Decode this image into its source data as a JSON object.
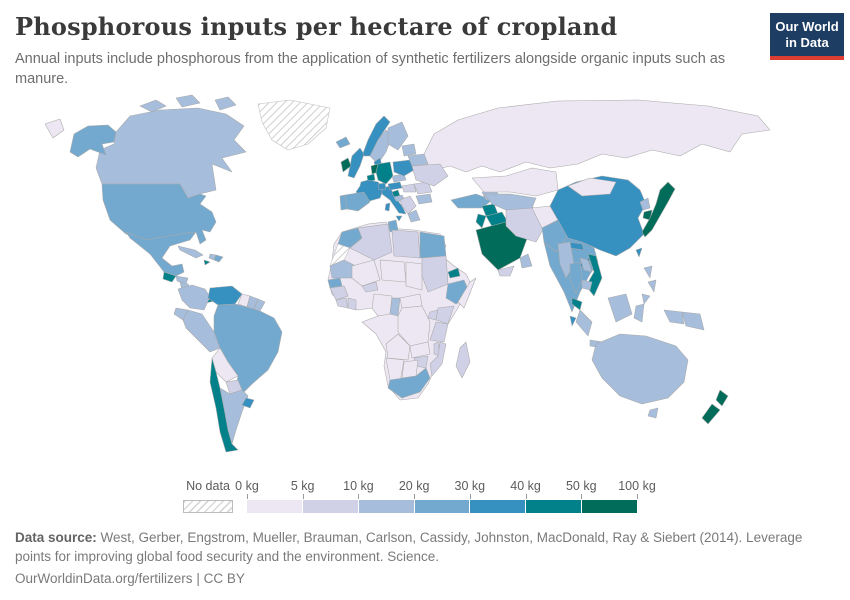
{
  "header": {
    "title": "Phosphorous inputs per hectare of cropland",
    "subtitle": "Annual inputs include phosphorous from the application of synthetic fertilizers alongside organic inputs such as manure.",
    "logo": {
      "line1": "Our World",
      "line2": "in Data",
      "bg_color": "#1d3d63",
      "accent_color": "#dc3e32"
    }
  },
  "legend": {
    "no_data_label": "No data",
    "tick_labels": [
      "0 kg",
      "5 kg",
      "10 kg",
      "20 kg",
      "30 kg",
      "40 kg",
      "50 kg",
      "100 kg"
    ],
    "colors": [
      "#ece7f2",
      "#d0d1e6",
      "#a6bddb",
      "#74a9cf",
      "#3690c0",
      "#02818a",
      "#016c59"
    ]
  },
  "footer": {
    "source_prefix": "Data source:",
    "source_text": " West, Gerber, Engstrom, Mueller, Brauman, Carlson, Cassidy, Johnston, MacDonald, Ray & Siebert (2014). Leverage points for improving global food security and the environment. Science.",
    "link_text": "OurWorldinData.org/fertilizers",
    "separator": " | ",
    "license_text": "CC BY"
  },
  "chart_data": {
    "type": "choropleth_map",
    "title": "Phosphorous inputs per hectare of cropland",
    "unit": "kg",
    "bin_edges_kg": [
      0,
      5,
      10,
      20,
      30,
      40,
      50,
      100
    ],
    "bin_colors": [
      "#ece7f2",
      "#d0d1e6",
      "#a6bddb",
      "#74a9cf",
      "#3690c0",
      "#02818a",
      "#016c59"
    ],
    "bin_ranges": [
      "0-5 kg",
      "5-10 kg",
      "10-20 kg",
      "20-30 kg",
      "30-40 kg",
      "40-50 kg",
      "50-100 kg"
    ],
    "no_data_style": "gray diagonal hatch",
    "countries": [
      {
        "name": "Russia",
        "bin": 0,
        "range": "0-5 kg"
      },
      {
        "name": "Canada",
        "bin": 2,
        "range": "10-20 kg"
      },
      {
        "name": "Greenland",
        "bin": -1,
        "range": "No data"
      },
      {
        "name": "United States",
        "bin": 3,
        "range": "20-30 kg"
      },
      {
        "name": "Iceland",
        "bin": 3,
        "range": "20-30 kg"
      },
      {
        "name": "Mexico",
        "bin": 3,
        "range": "20-30 kg"
      },
      {
        "name": "Guatemala",
        "bin": 5,
        "range": "40-50 kg"
      },
      {
        "name": "Honduras",
        "bin": 2,
        "range": "10-20 kg"
      },
      {
        "name": "Nicaragua",
        "bin": 2,
        "range": "10-20 kg"
      },
      {
        "name": "Costa Rica",
        "bin": 4,
        "range": "30-40 kg"
      },
      {
        "name": "Panama",
        "bin": 5,
        "range": "40-50 kg"
      },
      {
        "name": "Cuba",
        "bin": 2,
        "range": "10-20 kg"
      },
      {
        "name": "Haiti",
        "bin": 2,
        "range": "10-20 kg"
      },
      {
        "name": "Dominican Republic",
        "bin": 3,
        "range": "20-30 kg"
      },
      {
        "name": "Jamaica",
        "bin": 5,
        "range": "40-50 kg"
      },
      {
        "name": "Colombia",
        "bin": 2,
        "range": "10-20 kg"
      },
      {
        "name": "Venezuela",
        "bin": 4,
        "range": "30-40 kg"
      },
      {
        "name": "Guyana",
        "bin": 0,
        "range": "0-5 kg"
      },
      {
        "name": "Suriname",
        "bin": 2,
        "range": "10-20 kg"
      },
      {
        "name": "French Guiana",
        "bin": 2,
        "range": "10-20 kg"
      },
      {
        "name": "Brazil",
        "bin": 3,
        "range": "20-30 kg"
      },
      {
        "name": "Ecuador",
        "bin": 2,
        "range": "10-20 kg"
      },
      {
        "name": "Peru",
        "bin": 2,
        "range": "10-20 kg"
      },
      {
        "name": "Bolivia",
        "bin": 0,
        "range": "0-5 kg"
      },
      {
        "name": "Paraguay",
        "bin": 1,
        "range": "5-10 kg"
      },
      {
        "name": "Chile",
        "bin": 5,
        "range": "40-50 kg"
      },
      {
        "name": "Argentina",
        "bin": 2,
        "range": "10-20 kg"
      },
      {
        "name": "Uruguay",
        "bin": 4,
        "range": "30-40 kg"
      },
      {
        "name": "Norway",
        "bin": 4,
        "range": "30-40 kg"
      },
      {
        "name": "Sweden",
        "bin": 2,
        "range": "10-20 kg"
      },
      {
        "name": "Finland",
        "bin": 2,
        "range": "10-20 kg"
      },
      {
        "name": "United Kingdom",
        "bin": 4,
        "range": "30-40 kg"
      },
      {
        "name": "Ireland",
        "bin": 6,
        "range": "50-100 kg"
      },
      {
        "name": "Denmark",
        "bin": 4,
        "range": "30-40 kg"
      },
      {
        "name": "Netherlands",
        "bin": 6,
        "range": "50-100 kg"
      },
      {
        "name": "Belgium",
        "bin": 5,
        "range": "40-50 kg"
      },
      {
        "name": "Germany",
        "bin": 5,
        "range": "40-50 kg"
      },
      {
        "name": "France",
        "bin": 4,
        "range": "30-40 kg"
      },
      {
        "name": "Portugal",
        "bin": 3,
        "range": "20-30 kg"
      },
      {
        "name": "Spain",
        "bin": 3,
        "range": "20-30 kg"
      },
      {
        "name": "Italy",
        "bin": 4,
        "range": "30-40 kg"
      },
      {
        "name": "Switzerland",
        "bin": 4,
        "range": "30-40 kg"
      },
      {
        "name": "Austria",
        "bin": 4,
        "range": "30-40 kg"
      },
      {
        "name": "Czechia",
        "bin": 2,
        "range": "10-20 kg"
      },
      {
        "name": "Poland",
        "bin": 4,
        "range": "30-40 kg"
      },
      {
        "name": "Slovenia",
        "bin": 5,
        "range": "40-50 kg"
      },
      {
        "name": "Croatia",
        "bin": 2,
        "range": "10-20 kg"
      },
      {
        "name": "Serbia",
        "bin": 1,
        "range": "5-10 kg"
      },
      {
        "name": "Greece",
        "bin": 2,
        "range": "10-20 kg"
      },
      {
        "name": "Hungary",
        "bin": 1,
        "range": "5-10 kg"
      },
      {
        "name": "Romania",
        "bin": 1,
        "range": "5-10 kg"
      },
      {
        "name": "Bulgaria",
        "bin": 2,
        "range": "10-20 kg"
      },
      {
        "name": "Ukraine",
        "bin": 1,
        "range": "5-10 kg"
      },
      {
        "name": "Belarus",
        "bin": 2,
        "range": "10-20 kg"
      },
      {
        "name": "Lithuania",
        "bin": 2,
        "range": "10-20 kg"
      },
      {
        "name": "Turkey",
        "bin": 3,
        "range": "20-30 kg"
      },
      {
        "name": "Syria",
        "bin": 5,
        "range": "40-50 kg"
      },
      {
        "name": "Iraq",
        "bin": 5,
        "range": "40-50 kg"
      },
      {
        "name": "Israel",
        "bin": 5,
        "range": "40-50 kg"
      },
      {
        "name": "Saudi Arabia",
        "bin": 6,
        "range": "50-100 kg"
      },
      {
        "name": "Yemen",
        "bin": 1,
        "range": "5-10 kg"
      },
      {
        "name": "Oman",
        "bin": 2,
        "range": "10-20 kg"
      },
      {
        "name": "Iran",
        "bin": 1,
        "range": "5-10 kg"
      },
      {
        "name": "Azerbaijan",
        "bin": 2,
        "range": "10-20 kg"
      },
      {
        "name": "Kazakhstan",
        "bin": 0,
        "range": "0-5 kg"
      },
      {
        "name": "Uzbekistan",
        "bin": 2,
        "range": "10-20 kg"
      },
      {
        "name": "Afghanistan",
        "bin": 0,
        "range": "0-5 kg"
      },
      {
        "name": "Pakistan",
        "bin": 3,
        "range": "20-30 kg"
      },
      {
        "name": "India",
        "bin": 3,
        "range": "20-30 kg"
      },
      {
        "name": "Nepal",
        "bin": 4,
        "range": "30-40 kg"
      },
      {
        "name": "Bangladesh",
        "bin": 4,
        "range": "30-40 kg"
      },
      {
        "name": "Sri Lanka",
        "bin": 4,
        "range": "30-40 kg"
      },
      {
        "name": "China",
        "bin": 4,
        "range": "30-40 kg"
      },
      {
        "name": "Mongolia",
        "bin": 0,
        "range": "0-5 kg"
      },
      {
        "name": "North Korea",
        "bin": 2,
        "range": "10-20 kg"
      },
      {
        "name": "South Korea",
        "bin": 6,
        "range": "50-100 kg"
      },
      {
        "name": "Japan",
        "bin": 6,
        "range": "50-100 kg"
      },
      {
        "name": "Taiwan",
        "bin": 4,
        "range": "30-40 kg"
      },
      {
        "name": "Myanmar",
        "bin": 2,
        "range": "10-20 kg"
      },
      {
        "name": "Thailand",
        "bin": 3,
        "range": "20-30 kg"
      },
      {
        "name": "Laos",
        "bin": 2,
        "range": "10-20 kg"
      },
      {
        "name": "Vietnam",
        "bin": 5,
        "range": "40-50 kg"
      },
      {
        "name": "Cambodia",
        "bin": 2,
        "range": "10-20 kg"
      },
      {
        "name": "Malaysia",
        "bin": 5,
        "range": "40-50 kg"
      },
      {
        "name": "Philippines",
        "bin": 2,
        "range": "10-20 kg"
      },
      {
        "name": "Indonesia",
        "bin": 2,
        "range": "10-20 kg"
      },
      {
        "name": "Papua New Guinea",
        "bin": 2,
        "range": "10-20 kg"
      },
      {
        "name": "Australia",
        "bin": 2,
        "range": "10-20 kg"
      },
      {
        "name": "New Zealand",
        "bin": 6,
        "range": "50-100 kg"
      },
      {
        "name": "Morocco",
        "bin": 3,
        "range": "20-30 kg"
      },
      {
        "name": "Western Sahara",
        "bin": -1,
        "range": "No data"
      },
      {
        "name": "Algeria",
        "bin": 1,
        "range": "5-10 kg"
      },
      {
        "name": "Tunisia",
        "bin": 3,
        "range": "20-30 kg"
      },
      {
        "name": "Libya",
        "bin": 1,
        "range": "5-10 kg"
      },
      {
        "name": "Egypt",
        "bin": 3,
        "range": "20-30 kg"
      },
      {
        "name": "Mauritania",
        "bin": 2,
        "range": "10-20 kg"
      },
      {
        "name": "Senegal",
        "bin": 3,
        "range": "20-30 kg"
      },
      {
        "name": "Guinea",
        "bin": 1,
        "range": "5-10 kg"
      },
      {
        "name": "Mali",
        "bin": 0,
        "range": "0-5 kg"
      },
      {
        "name": "Burkina Faso",
        "bin": 1,
        "range": "5-10 kg"
      },
      {
        "name": "Niger",
        "bin": 0,
        "range": "0-5 kg"
      },
      {
        "name": "Chad",
        "bin": 0,
        "range": "0-5 kg"
      },
      {
        "name": "Sudan",
        "bin": 1,
        "range": "5-10 kg"
      },
      {
        "name": "Eritrea",
        "bin": 5,
        "range": "40-50 kg"
      },
      {
        "name": "Ethiopia",
        "bin": 3,
        "range": "20-30 kg"
      },
      {
        "name": "Somalia",
        "bin": 0,
        "range": "0-5 kg"
      },
      {
        "name": "Cote d'Ivoire",
        "bin": 1,
        "range": "5-10 kg"
      },
      {
        "name": "Ghana",
        "bin": 1,
        "range": "5-10 kg"
      },
      {
        "name": "Nigeria",
        "bin": 0,
        "range": "0-5 kg"
      },
      {
        "name": "Cameroon",
        "bin": 2,
        "range": "10-20 kg"
      },
      {
        "name": "Central African Republic",
        "bin": 0,
        "range": "0-5 kg"
      },
      {
        "name": "Democratic Republic of Congo",
        "bin": 0,
        "range": "0-5 kg"
      },
      {
        "name": "Uganda",
        "bin": 1,
        "range": "5-10 kg"
      },
      {
        "name": "Kenya",
        "bin": 1,
        "range": "5-10 kg"
      },
      {
        "name": "Tanzania",
        "bin": 1,
        "range": "5-10 kg"
      },
      {
        "name": "Angola",
        "bin": 0,
        "range": "0-5 kg"
      },
      {
        "name": "Zambia",
        "bin": 0,
        "range": "0-5 kg"
      },
      {
        "name": "Malawi",
        "bin": 1,
        "range": "5-10 kg"
      },
      {
        "name": "Mozambique",
        "bin": 1,
        "range": "5-10 kg"
      },
      {
        "name": "Zimbabwe",
        "bin": 1,
        "range": "5-10 kg"
      },
      {
        "name": "Namibia",
        "bin": 0,
        "range": "0-5 kg"
      },
      {
        "name": "Botswana",
        "bin": 0,
        "range": "0-5 kg"
      },
      {
        "name": "South Africa",
        "bin": 3,
        "range": "20-30 kg"
      },
      {
        "name": "Madagascar",
        "bin": 1,
        "range": "5-10 kg"
      }
    ]
  }
}
